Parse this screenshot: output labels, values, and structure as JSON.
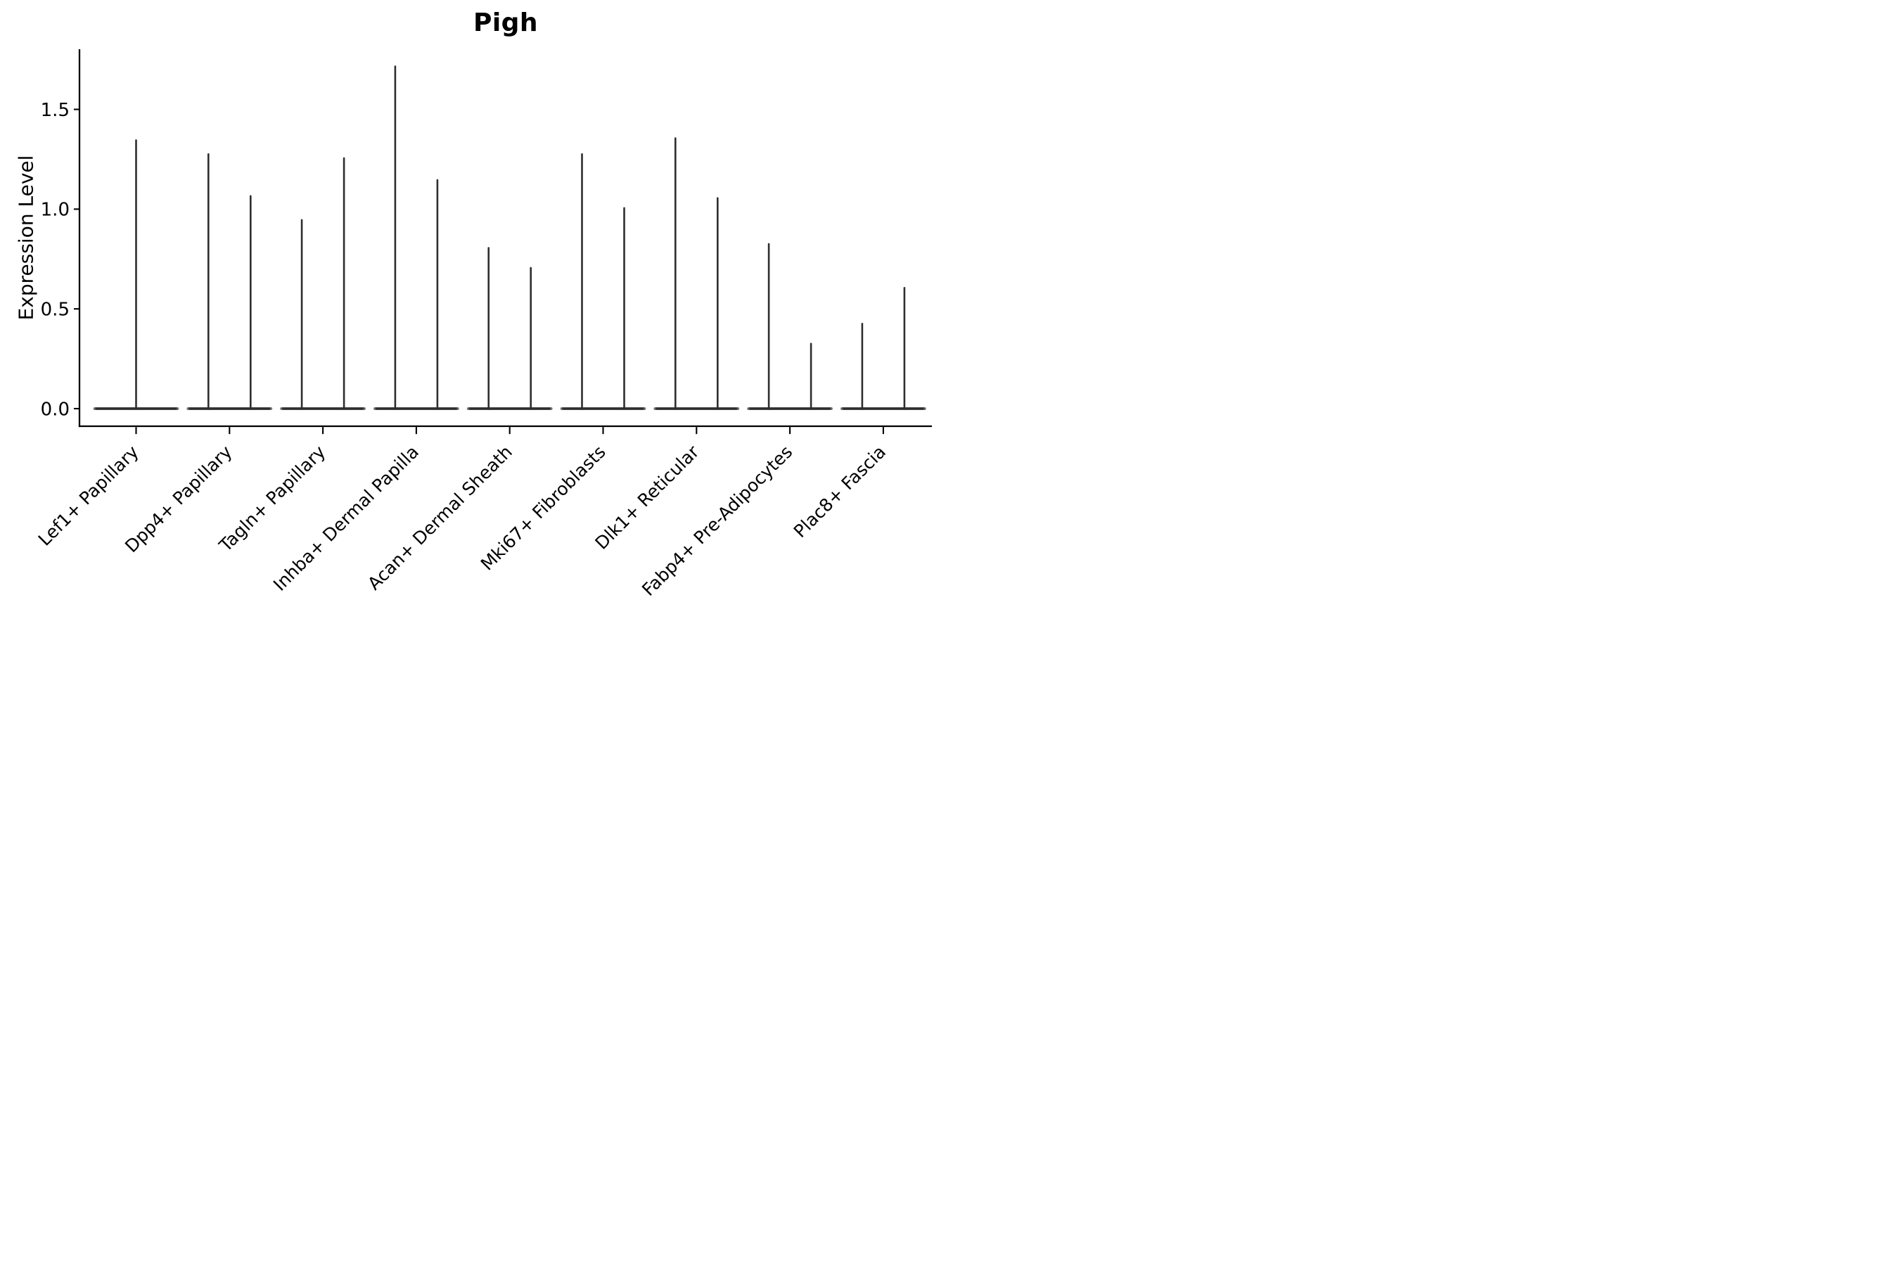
{
  "title": "Pigh",
  "axes": {
    "ylabel": "Expression Level",
    "ytick_labels": [
      "0.0",
      "0.5",
      "1.0",
      "1.5"
    ],
    "ytick_values": [
      0.0,
      0.5,
      1.0,
      1.5
    ],
    "ylim": [
      0,
      1.8
    ]
  },
  "chart_data": {
    "type": "violin",
    "title": "Pigh",
    "ylabel": "Expression Level",
    "xlabel": "",
    "ylim": [
      0,
      1.8
    ],
    "yticks": [
      0.0,
      0.5,
      1.0,
      1.5
    ],
    "ytick_labels": [
      "0.0",
      "0.5",
      "1.0",
      "1.5"
    ],
    "grid": false,
    "legend": "none",
    "violin_color": "#2e2e2e",
    "shape_note": "Each violin is collapsed: a wide flat base at expression 0 with a single thin vertical spike reaching the maximum expression value.",
    "categories": [
      "Lef1+ Papillary",
      "Dpp4+ Papillary",
      "Tagln+ Papillary",
      "Inhba+ Dermal Papilla",
      "Acan+ Dermal Sheath",
      "Mki67+ Fibroblasts",
      "Dlk1+ Reticular",
      "Fabp4+ Pre-Adipocytes",
      "Plac8+ Fascia"
    ],
    "series": [
      {
        "category": "Lef1+ Papillary",
        "spike_maxima": [
          1.35
        ]
      },
      {
        "category": "Dpp4+ Papillary",
        "spike_maxima": [
          1.28,
          1.07
        ]
      },
      {
        "category": "Tagln+ Papillary",
        "spike_maxima": [
          0.95,
          1.26
        ]
      },
      {
        "category": "Inhba+ Dermal Papilla",
        "spike_maxima": [
          1.72,
          1.15
        ]
      },
      {
        "category": "Acan+ Dermal Sheath",
        "spike_maxima": [
          0.81,
          0.71
        ]
      },
      {
        "category": "Mki67+ Fibroblasts",
        "spike_maxima": [
          1.28,
          1.01
        ]
      },
      {
        "category": "Dlk1+ Reticular",
        "spike_maxima": [
          1.36,
          1.06
        ]
      },
      {
        "category": "Fabp4+ Pre-Adipocytes",
        "spike_maxima": [
          0.83,
          0.33
        ]
      },
      {
        "category": "Plac8+ Fascia",
        "spike_maxima": [
          0.43,
          0.61
        ]
      }
    ]
  }
}
